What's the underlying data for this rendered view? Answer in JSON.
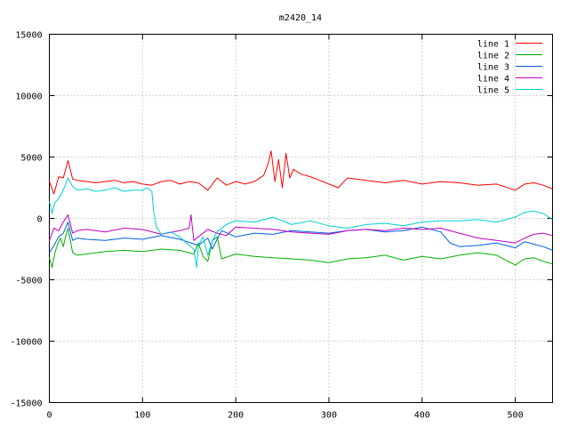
{
  "chart_data": {
    "type": "line",
    "title": "m2420_14",
    "xlabel": "",
    "ylabel": "",
    "xlim": [
      0,
      540
    ],
    "ylim": [
      -15000,
      15000
    ],
    "xticks": [
      0,
      100,
      200,
      300,
      400,
      500
    ],
    "yticks": [
      -15000,
      -10000,
      -5000,
      0,
      5000,
      10000,
      15000
    ],
    "grid": true,
    "legend_position": "top-right",
    "series": [
      {
        "name": "line 1",
        "color": "#ff0000",
        "x": [
          0,
          5,
          10,
          15,
          20,
          25,
          30,
          40,
          50,
          60,
          70,
          80,
          90,
          100,
          110,
          120,
          130,
          140,
          150,
          160,
          170,
          180,
          190,
          200,
          210,
          220,
          230,
          235,
          238,
          242,
          246,
          250,
          254,
          258,
          262,
          270,
          280,
          290,
          300,
          310,
          320,
          340,
          360,
          380,
          400,
          420,
          440,
          460,
          480,
          500,
          510,
          520,
          530,
          540
        ],
        "y": [
          3000,
          2000,
          3400,
          3300,
          4700,
          3200,
          3100,
          3000,
          2900,
          3000,
          3100,
          2900,
          3000,
          2800,
          2700,
          3000,
          3100,
          2800,
          3000,
          2900,
          2300,
          3300,
          2700,
          3000,
          2800,
          3000,
          3500,
          4500,
          5500,
          3000,
          4800,
          2500,
          5300,
          3300,
          4000,
          3600,
          3400,
          3100,
          2800,
          2500,
          3300,
          3100,
          2900,
          3100,
          2800,
          3000,
          2900,
          2700,
          2800,
          2300,
          2800,
          2900,
          2700,
          2400
        ]
      },
      {
        "name": "line 2",
        "color": "#00b000",
        "x": [
          0,
          3,
          6,
          9,
          12,
          15,
          18,
          20,
          25,
          30,
          40,
          60,
          80,
          100,
          120,
          140,
          155,
          160,
          165,
          170,
          175,
          180,
          185,
          200,
          220,
          240,
          260,
          280,
          300,
          320,
          340,
          360,
          380,
          400,
          420,
          440,
          460,
          480,
          500,
          510,
          520,
          530,
          540
        ],
        "y": [
          -3200,
          -4000,
          -2800,
          -2100,
          -1600,
          -2300,
          -1300,
          -800,
          -2800,
          -3000,
          -2900,
          -2700,
          -2600,
          -2700,
          -2500,
          -2600,
          -2900,
          -2000,
          -3100,
          -3500,
          -1800,
          -1500,
          -3300,
          -2900,
          -3100,
          -3200,
          -3300,
          -3400,
          -3600,
          -3300,
          -3200,
          -3000,
          -3400,
          -3100,
          -3300,
          -3000,
          -2800,
          -3000,
          -3800,
          -3300,
          -3200,
          -3500,
          -3700
        ]
      },
      {
        "name": "line 3",
        "color": "#0060e0",
        "x": [
          0,
          5,
          10,
          15,
          20,
          25,
          30,
          40,
          60,
          80,
          100,
          120,
          140,
          160,
          170,
          175,
          180,
          185,
          200,
          220,
          240,
          260,
          280,
          300,
          320,
          340,
          360,
          380,
          400,
          420,
          430,
          440,
          460,
          480,
          500,
          510,
          520,
          530,
          540
        ],
        "y": [
          -2800,
          -2200,
          -1500,
          -1200,
          -300,
          -1800,
          -1600,
          -1700,
          -1800,
          -1600,
          -1700,
          -1400,
          -1700,
          -2200,
          -1600,
          -2500,
          -1700,
          -1000,
          -1500,
          -1200,
          -1300,
          -1000,
          -1100,
          -1200,
          -1000,
          -900,
          -1100,
          -1000,
          -700,
          -1100,
          -2000,
          -2300,
          -2200,
          -2000,
          -2400,
          -1900,
          -2100,
          -2300,
          -2600
        ]
      },
      {
        "name": "line 4",
        "color": "#c000c0",
        "x": [
          0,
          5,
          10,
          15,
          20,
          25,
          30,
          40,
          60,
          80,
          100,
          120,
          140,
          150,
          152,
          155,
          160,
          170,
          180,
          190,
          200,
          220,
          240,
          260,
          280,
          300,
          320,
          340,
          360,
          380,
          400,
          420,
          440,
          460,
          480,
          500,
          510,
          520,
          530,
          540
        ],
        "y": [
          -1800,
          -800,
          -1000,
          -300,
          300,
          -1200,
          -1000,
          -900,
          -1100,
          -800,
          -900,
          -1300,
          -1000,
          -800,
          300,
          -1800,
          -1500,
          -900,
          -1200,
          -1400,
          -700,
          -800,
          -900,
          -1100,
          -1200,
          -1300,
          -1000,
          -900,
          -1000,
          -800,
          -900,
          -800,
          -1200,
          -1600,
          -1800,
          -2000,
          -1600,
          -1300,
          -1200,
          -1400
        ]
      },
      {
        "name": "line 5",
        "color": "#00d0d0",
        "x": [
          0,
          3,
          6,
          10,
          15,
          20,
          25,
          30,
          40,
          50,
          60,
          70,
          80,
          90,
          100,
          105,
          110,
          112,
          115,
          120,
          130,
          140,
          150,
          155,
          158,
          160,
          165,
          170,
          175,
          180,
          190,
          200,
          220,
          240,
          260,
          280,
          300,
          320,
          340,
          360,
          380,
          400,
          420,
          440,
          460,
          480,
          500,
          510,
          520,
          530,
          540
        ],
        "y": [
          1400,
          400,
          1300,
          1600,
          2300,
          3300,
          2600,
          2300,
          2400,
          2200,
          2300,
          2500,
          2200,
          2300,
          2300,
          2500,
          2200,
          500,
          -700,
          -1300,
          -1100,
          -1500,
          -2200,
          -2500,
          -4000,
          -2200,
          -1500,
          -3000,
          -1800,
          -1100,
          -500,
          -200,
          -300,
          100,
          -500,
          -200,
          -600,
          -800,
          -500,
          -400,
          -600,
          -300,
          -200,
          -200,
          -100,
          -300,
          100,
          500,
          600,
          400,
          -100
        ]
      }
    ]
  }
}
